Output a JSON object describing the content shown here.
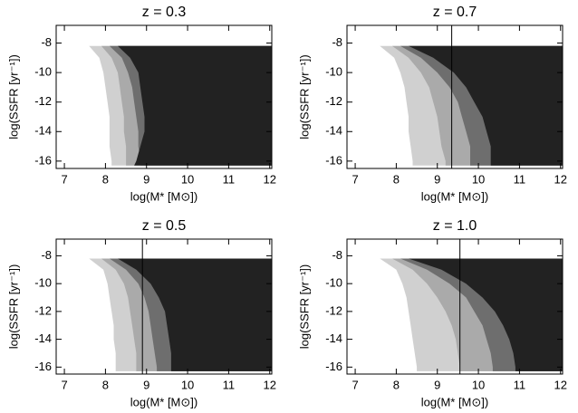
{
  "chart_data": [
    {
      "type": "contour",
      "title": "z = 0.3",
      "xlabel": "log(M* [M⊙])",
      "ylabel": "log(SSFR [yr⁻¹])",
      "xlim": [
        6.8,
        12.05
      ],
      "xticks": [
        7,
        8,
        9,
        10,
        11,
        12
      ],
      "ylim": [
        -16.5,
        -6.8
      ],
      "yticks": [
        -8,
        -10,
        -12,
        -14,
        -16
      ],
      "y": [
        -8.2,
        -9,
        -10,
        -11,
        -12,
        -13,
        -14,
        -15,
        -16,
        -16.3
      ],
      "series": [
        {
          "color": "#d0d0d0",
          "values": [
            7.6,
            7.85,
            7.95,
            8.0,
            8.05,
            8.1,
            8.1,
            8.1,
            8.15,
            8.15
          ]
        },
        {
          "color": "#aaaaaa",
          "values": [
            7.9,
            8.15,
            8.3,
            8.35,
            8.4,
            8.45,
            8.45,
            8.5,
            8.5,
            8.5
          ]
        },
        {
          "color": "#6e6e6e",
          "values": [
            8.1,
            8.4,
            8.55,
            8.65,
            8.7,
            8.75,
            8.8,
            8.8,
            8.85,
            8.85
          ]
        },
        {
          "color": "#222222",
          "values": [
            8.3,
            8.6,
            8.8,
            8.85,
            8.9,
            8.95,
            8.95,
            8.85,
            8.75,
            8.7
          ]
        }
      ]
    },
    {
      "type": "contour",
      "title": "z = 0.7",
      "xlabel": "log(M* [M⊙])",
      "ylabel": "log(SSFR [yr⁻¹])",
      "xlim": [
        6.8,
        12.05
      ],
      "xticks": [
        7,
        8,
        9,
        10,
        11,
        12
      ],
      "ylim": [
        -16.5,
        -6.8
      ],
      "yticks": [
        -8,
        -10,
        -12,
        -14,
        -16
      ],
      "y": [
        -8.2,
        -9,
        -10,
        -11,
        -12,
        -13,
        -14,
        -15,
        -16,
        -16.3
      ],
      "marker_x": 9.35,
      "series": [
        {
          "color": "#d0d0d0",
          "values": [
            7.6,
            7.95,
            8.1,
            8.2,
            8.25,
            8.3,
            8.3,
            8.35,
            8.4,
            8.4
          ]
        },
        {
          "color": "#aaaaaa",
          "values": [
            7.9,
            8.3,
            8.6,
            8.8,
            8.9,
            9.0,
            9.05,
            9.1,
            9.2,
            9.2
          ]
        },
        {
          "color": "#6e6e6e",
          "values": [
            8.1,
            8.6,
            9.0,
            9.3,
            9.5,
            9.6,
            9.7,
            9.8,
            9.8,
            9.8
          ]
        },
        {
          "color": "#222222",
          "values": [
            8.3,
            8.9,
            9.4,
            9.7,
            9.9,
            10.1,
            10.2,
            10.3,
            10.3,
            10.3
          ]
        }
      ]
    },
    {
      "type": "contour",
      "title": "z = 0.5",
      "xlabel": "log(M* [M⊙])",
      "ylabel": "log(SSFR [yr⁻¹])",
      "xlim": [
        6.8,
        12.05
      ],
      "xticks": [
        7,
        8,
        9,
        10,
        11,
        12
      ],
      "ylim": [
        -16.5,
        -6.8
      ],
      "yticks": [
        -8,
        -10,
        -12,
        -14,
        -16
      ],
      "y": [
        -8.2,
        -9,
        -10,
        -11,
        -12,
        -13,
        -14,
        -15,
        -16,
        -16.3
      ],
      "marker_x": 8.9,
      "series": [
        {
          "color": "#d0d0d0",
          "values": [
            7.6,
            7.95,
            8.05,
            8.1,
            8.15,
            8.2,
            8.2,
            8.25,
            8.25,
            8.25
          ]
        },
        {
          "color": "#aaaaaa",
          "values": [
            7.9,
            8.25,
            8.45,
            8.55,
            8.6,
            8.65,
            8.7,
            8.75,
            8.75,
            8.75
          ]
        },
        {
          "color": "#6e6e6e",
          "values": [
            8.1,
            8.5,
            8.8,
            8.95,
            9.05,
            9.1,
            9.15,
            9.2,
            9.25,
            9.25
          ]
        },
        {
          "color": "#222222",
          "values": [
            8.3,
            8.75,
            9.1,
            9.3,
            9.45,
            9.5,
            9.55,
            9.6,
            9.6,
            9.6
          ]
        }
      ]
    },
    {
      "type": "contour",
      "title": "z = 1.0",
      "xlabel": "log(M* [M⊙])",
      "ylabel": "log(SSFR [yr⁻¹])",
      "xlim": [
        6.8,
        12.05
      ],
      "xticks": [
        7,
        8,
        9,
        10,
        11,
        12
      ],
      "ylim": [
        -16.5,
        -6.8
      ],
      "yticks": [
        -8,
        -10,
        -12,
        -14,
        -16
      ],
      "y": [
        -8.2,
        -9,
        -10,
        -11,
        -12,
        -13,
        -14,
        -15,
        -16,
        -16.3
      ],
      "marker_x": 9.55,
      "series": [
        {
          "color": "#d0d0d0",
          "values": [
            7.6,
            8.0,
            8.15,
            8.25,
            8.3,
            8.35,
            8.4,
            8.45,
            8.5,
            8.5
          ]
        },
        {
          "color": "#aaaaaa",
          "values": [
            7.9,
            8.4,
            8.75,
            9.0,
            9.2,
            9.35,
            9.45,
            9.5,
            9.55,
            9.55
          ]
        },
        {
          "color": "#6e6e6e",
          "values": [
            8.1,
            8.75,
            9.3,
            9.7,
            9.9,
            10.1,
            10.2,
            10.3,
            10.35,
            10.35
          ]
        },
        {
          "color": "#222222",
          "values": [
            8.3,
            9.1,
            9.7,
            10.1,
            10.4,
            10.6,
            10.75,
            10.85,
            10.9,
            10.9
          ]
        }
      ]
    }
  ]
}
